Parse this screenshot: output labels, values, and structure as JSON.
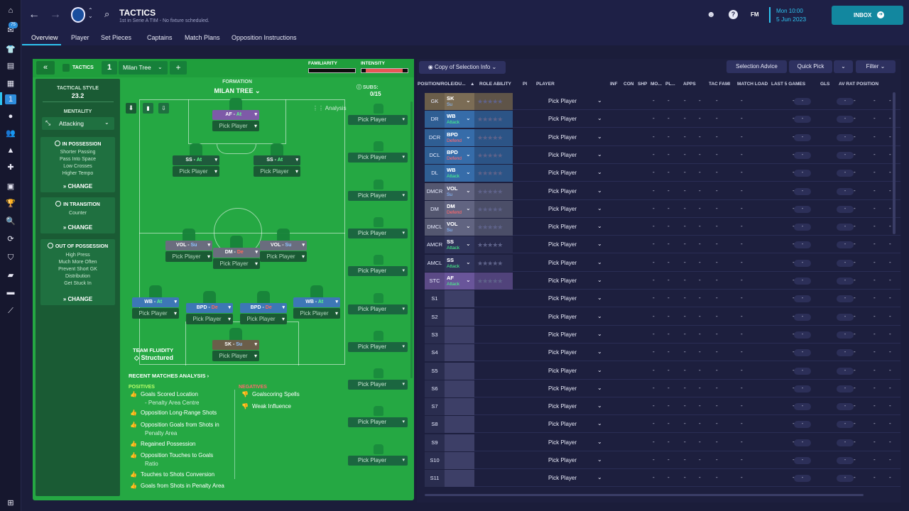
{
  "header": {
    "title": "TACTICS",
    "subtitle": "1st in Serie A TIM - No fixture scheduled.",
    "fm": "FM",
    "date_day": "Mon 10:00",
    "date": "5 Jun 2023",
    "inbox": "INBOX",
    "badge_count": "75"
  },
  "tabs": [
    "Overview",
    "Player",
    "Set Pieces",
    "Captains",
    "Match Plans",
    "Opposition Instructions"
  ],
  "tactic_header": {
    "label": "TACTICS",
    "slot": "1",
    "name": "Milan Tree",
    "familiarity": "FAMILIARITY",
    "intensity": "INTENSITY"
  },
  "sidebar": {
    "style_label": "TACTICAL STYLE",
    "style_value": "23.2",
    "mentality_label": "MENTALITY",
    "mentality_value": "Attacking",
    "in_possession": {
      "title": "IN POSSESSION",
      "items": [
        "Shorter Passing",
        "Pass Into Space",
        "Low Crosses",
        "Higher Tempo"
      ],
      "change": "CHANGE"
    },
    "in_transition": {
      "title": "IN TRANSITION",
      "items": [
        "Counter"
      ],
      "change": "CHANGE"
    },
    "out_possession": {
      "title": "OUT OF POSSESSION",
      "items": [
        "High Press",
        "Much More Often",
        "Prevent Short GK",
        "Distribution",
        "Get Stuck In"
      ],
      "change": "CHANGE"
    }
  },
  "formation": {
    "label": "FORMATION",
    "name": "MILAN TREE",
    "analysis": "Analysis",
    "fluidity_label": "TEAM FLUIDITY",
    "fluidity_value": "Structured",
    "pick_label": "Pick Player",
    "positions": [
      {
        "role": "AF",
        "duty": "At",
        "color": "#7e5aa8"
      },
      {
        "role": "SS",
        "duty": "At",
        "color": "#1f5a3c"
      },
      {
        "role": "SS",
        "duty": "At",
        "color": "#1f5a3c"
      },
      {
        "role": "VOL",
        "duty": "Su",
        "color": "#6a6d7e"
      },
      {
        "role": "DM",
        "duty": "De",
        "color": "#6a6d7e"
      },
      {
        "role": "VOL",
        "duty": "Su",
        "color": "#6a6d7e"
      },
      {
        "role": "WB",
        "duty": "At",
        "color": "#3d77b6"
      },
      {
        "role": "BPD",
        "duty": "De",
        "color": "#3d77b6"
      },
      {
        "role": "BPD",
        "duty": "De",
        "color": "#3d77b6"
      },
      {
        "role": "WB",
        "duty": "At",
        "color": "#3d77b6"
      },
      {
        "role": "SK",
        "duty": "Su",
        "color": "#6b5e4a"
      }
    ]
  },
  "subs": {
    "label": "SUBS:",
    "count": "0/15",
    "pick_label": "Pick Player"
  },
  "recent": {
    "title": "RECENT MATCHES ANALYSIS",
    "positives_label": "POSITIVES",
    "negatives_label": "NEGATIVES",
    "positives": [
      "Goals Scored Location",
      "- Penalty Area Centre",
      "Opposition Long-Range Shots",
      "Opposition Goals from Shots in",
      "Penalty Area",
      "Regained Possession",
      "Opposition Touches to Goals",
      "Ratio",
      "Touches to Shots Conversion",
      "Goals from Shots in Penalty Area"
    ],
    "negatives": [
      "Goalscoring Spells",
      "Weak Influence"
    ]
  },
  "right": {
    "copy_btn": "Copy of Selection Info",
    "selection_advice": "Selection Advice",
    "quick_pick": "Quick Pick",
    "filter": "Filter",
    "columns": [
      "POSITION/ROLE/DU...",
      "ROLE ABILITY",
      "PI",
      "PLAYER",
      "INF",
      "CON",
      "SHP",
      "MO...",
      "PL...",
      "APPS",
      "TAC FAMI",
      "MATCH LOAD",
      "LAST 5 GAMES",
      "GLS",
      "AV RAT",
      "POSITION"
    ],
    "pick_player": "Pick Player",
    "dash": "-",
    "rows": [
      {
        "pos": "GK",
        "role": "SK",
        "duty": "Su",
        "color": "#6b5e4a",
        "duty_color": "#7ab0ff"
      },
      {
        "pos": "DR",
        "role": "WB",
        "duty": "Attack",
        "color": "#2f5e93",
        "duty_color": "#3fe07a"
      },
      {
        "pos": "DCR",
        "role": "BPD",
        "duty": "Defend",
        "color": "#2f5e93",
        "duty_color": "#ff5a5a"
      },
      {
        "pos": "DCL",
        "role": "BPD",
        "duty": "Defend",
        "color": "#2f5e93",
        "duty_color": "#ff5a5a"
      },
      {
        "pos": "DL",
        "role": "WB",
        "duty": "Attack",
        "color": "#2f5e93",
        "duty_color": "#3fe07a"
      },
      {
        "pos": "DMCR",
        "role": "VOL",
        "duty": "Su",
        "color": "#545770",
        "duty_color": "#7ab0ff"
      },
      {
        "pos": "DM",
        "role": "DM",
        "duty": "Defend",
        "color": "#545770",
        "duty_color": "#ff5a5a"
      },
      {
        "pos": "DMCL",
        "role": "VOL",
        "duty": "Su",
        "color": "#545770",
        "duty_color": "#7ab0ff"
      },
      {
        "pos": "AMCR",
        "role": "SS",
        "duty": "Attack",
        "color": "#2a2d4f",
        "duty_color": "#3fe07a"
      },
      {
        "pos": "AMCL",
        "role": "SS",
        "duty": "Attack",
        "color": "#2a2d4f",
        "duty_color": "#3fe07a"
      },
      {
        "pos": "STC",
        "role": "AF",
        "duty": "Attack",
        "color": "#5b4a86",
        "duty_color": "#3fe07a"
      },
      {
        "pos": "S1"
      },
      {
        "pos": "S2"
      },
      {
        "pos": "S3"
      },
      {
        "pos": "S4"
      },
      {
        "pos": "S5"
      },
      {
        "pos": "S6"
      },
      {
        "pos": "S7"
      },
      {
        "pos": "S8"
      },
      {
        "pos": "S9"
      },
      {
        "pos": "S10"
      },
      {
        "pos": "S11"
      }
    ]
  }
}
